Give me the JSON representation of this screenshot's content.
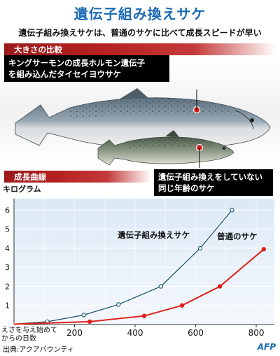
{
  "header": {
    "title": "遺伝子組み換えサケ",
    "subtitle": "遺伝子組み換えサケは、普通のサケに比べて成長スピードが早い"
  },
  "size_section": {
    "label": "大きさの比較",
    "callout_gm": [
      "キングサーモンの成長ホルモン遺伝子",
      "を組み込んだタイセイヨウサケ"
    ],
    "callout_normal": [
      "遺伝子組み換えをしていない",
      "同じ年齢のサケ"
    ]
  },
  "growth_section": {
    "label": "成長曲線"
  },
  "colors": {
    "title_blue": "#1a6bb5",
    "section_red": "#b52020",
    "gm_series": "#1c5a7a",
    "normal_series": "#e0201b",
    "chart_bg_top": "#dbe9f6",
    "chart_bg_bottom": "#f4f8fc"
  },
  "chart_data": {
    "type": "line",
    "ylabel": "キログラム",
    "xlabel": [
      "えさを与え始めて",
      "からの日数"
    ],
    "xlim": [
      0,
      860
    ],
    "ylim": [
      0,
      6.6
    ],
    "xticks": [
      200,
      400,
      600,
      800
    ],
    "yticks": [
      1,
      2,
      3,
      4,
      5,
      6
    ],
    "grid": true,
    "series": [
      {
        "name": "遺伝子組み換えサケ",
        "color": "#1c5a7a",
        "x": [
          0,
          110,
          230,
          345,
          485,
          615,
          720
        ],
        "y": [
          0.02,
          0.15,
          0.5,
          1.05,
          2.0,
          4.0,
          6.0
        ]
      },
      {
        "name": "普通のサケ",
        "color": "#e0201b",
        "x": [
          0,
          250,
          430,
          555,
          680,
          825
        ],
        "y": [
          0.02,
          0.15,
          0.45,
          1.0,
          2.0,
          3.95
        ]
      }
    ]
  },
  "footer": {
    "source": "出典:アクアバウンティ",
    "logo": "AFP"
  }
}
